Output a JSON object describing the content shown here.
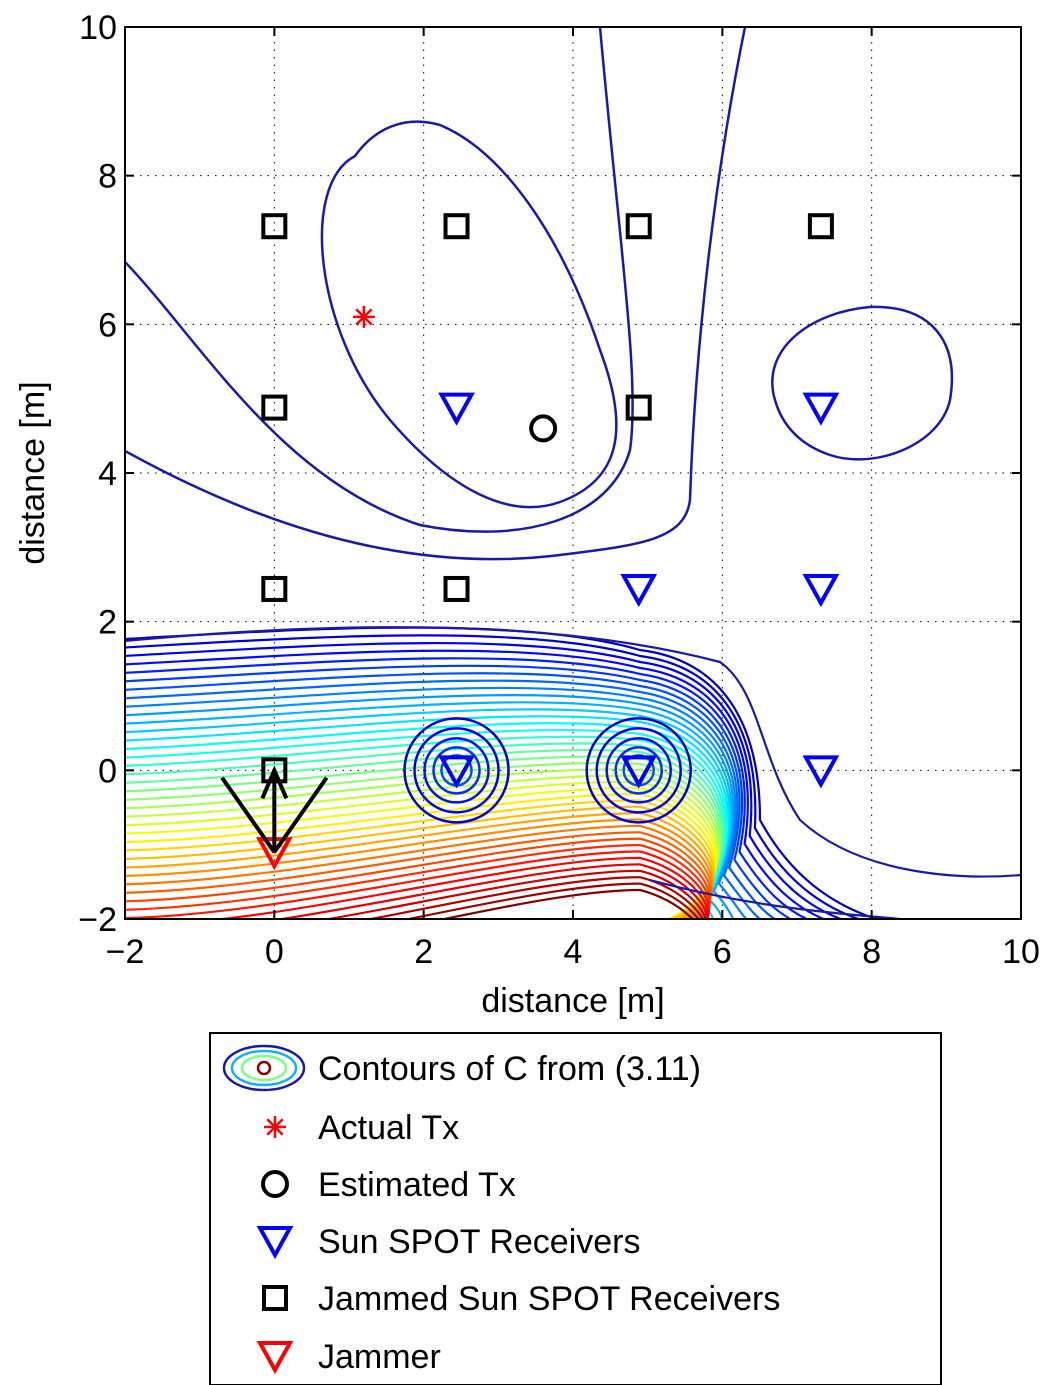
{
  "chart_data": {
    "type": "contour",
    "xlabel": "distance [m]",
    "ylabel": "distance [m]",
    "xlim": [
      -2,
      10
    ],
    "ylim": [
      -2,
      10
    ],
    "xticks": [
      "−2",
      "0",
      "2",
      "4",
      "6",
      "8",
      "10"
    ],
    "yticks": [
      "−2",
      "0",
      "2",
      "4",
      "6",
      "8",
      "10"
    ],
    "grid": true,
    "legend_position": "below",
    "series": [
      {
        "name": "Contours of C from (3.11)",
        "kind": "contour",
        "colormap": "jet",
        "levels": 40
      },
      {
        "name": "Actual Tx",
        "kind": "marker",
        "marker": "asterisk",
        "color": "#ff0000",
        "points": [
          {
            "x": 1.2,
            "y": 6.1
          }
        ]
      },
      {
        "name": "Estimated Tx",
        "kind": "marker",
        "marker": "circle",
        "color": "#000000",
        "points": [
          {
            "x": 3.6,
            "y": 4.6
          }
        ]
      },
      {
        "name": "Sun SPOT Receivers",
        "kind": "marker",
        "marker": "triangle-down",
        "color": "#0000ff",
        "points": [
          {
            "x": 2.44,
            "y": 4.88
          },
          {
            "x": 7.32,
            "y": 4.88
          },
          {
            "x": 4.88,
            "y": 2.44
          },
          {
            "x": 7.32,
            "y": 2.44
          },
          {
            "x": 2.44,
            "y": 0
          },
          {
            "x": 4.88,
            "y": 0
          },
          {
            "x": 7.32,
            "y": 0
          }
        ]
      },
      {
        "name": "Jammed Sun SPOT Receivers",
        "kind": "marker",
        "marker": "square",
        "color": "#000000",
        "points": [
          {
            "x": 0,
            "y": 7.32
          },
          {
            "x": 2.44,
            "y": 7.32
          },
          {
            "x": 4.88,
            "y": 7.32
          },
          {
            "x": 7.32,
            "y": 7.32
          },
          {
            "x": 0,
            "y": 4.88
          },
          {
            "x": 4.88,
            "y": 4.88
          },
          {
            "x": 0,
            "y": 2.44
          },
          {
            "x": 2.44,
            "y": 2.44
          },
          {
            "x": 0,
            "y": 0
          }
        ]
      },
      {
        "name": "Jammer",
        "kind": "marker",
        "marker": "triangle-down",
        "color": "#ff0000",
        "points": [
          {
            "x": 0,
            "y": -1.1
          }
        ]
      }
    ],
    "arrows": [
      {
        "from": [
          0,
          -1.1
        ],
        "to": [
          0,
          0
        ]
      },
      {
        "from": [
          0,
          -1.1
        ],
        "to": [
          -0.7,
          -0.1
        ]
      },
      {
        "from": [
          0,
          -1.1
        ],
        "to": [
          0.7,
          -0.1
        ]
      }
    ]
  }
}
